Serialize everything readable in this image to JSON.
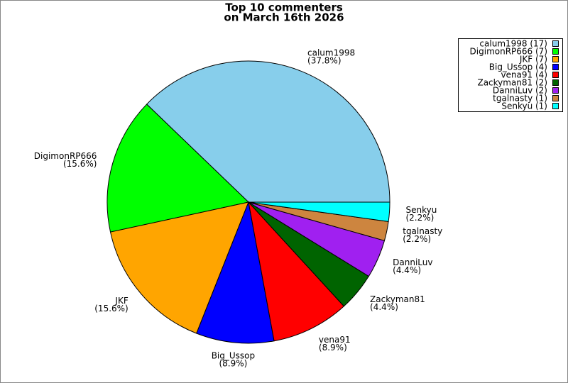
{
  "chart_data": {
    "type": "pie",
    "title": "Top 10 commenters",
    "subtitle": "on March 16th 2026",
    "categories": [
      "calum1998",
      "DigimonRP666",
      "JKF",
      "Big_Ussop",
      "vena91",
      "Zackyman81",
      "DanniLuv",
      "tgalnasty",
      "Senkyu"
    ],
    "values": [
      37.8,
      15.6,
      15.6,
      8.9,
      8.9,
      4.4,
      4.4,
      2.2,
      2.2
    ],
    "value_labels": [
      "(37.8%)",
      "(15.6%)",
      "(15.6%)",
      "(8.9%)",
      "(8.9%)",
      "(4.4%)",
      "(4.4%)",
      "(2.2%)",
      "(2.2%)"
    ],
    "legend_labels": [
      "calum1998 (17)",
      "DigimonRP666 (7)",
      "JKF (7)",
      "Big_Ussop (4)",
      "vena91 (4)",
      "Zackyman81 (2)",
      "DanniLuv (2)",
      "tgalnasty (1)",
      "Senkyu (1)"
    ],
    "colors": [
      "#87ceeb",
      "#00ff00",
      "#ffa500",
      "#0000ff",
      "#ff0000",
      "#006400",
      "#a020f0",
      "#cd853f",
      "#00ffff"
    ],
    "legend": "top-right"
  }
}
